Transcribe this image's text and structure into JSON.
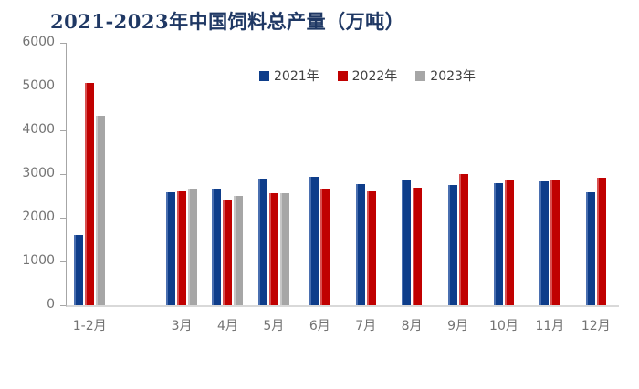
{
  "chart_data": {
    "type": "bar",
    "title": "2021-2023年中国饲料总产量（万吨）",
    "categories": [
      "1-2月",
      "",
      "3月",
      "4月",
      "5月",
      "6月",
      "7月",
      "8月",
      "9月",
      "10月",
      "11月",
      "12月"
    ],
    "series": [
      {
        "name": "2021年",
        "color": "#0E3D8A",
        "highlight": "#4A6FB0",
        "values": [
          1600,
          null,
          2580,
          2650,
          2870,
          2940,
          2770,
          2850,
          2740,
          2790,
          2830,
          2580
        ]
      },
      {
        "name": "2022年",
        "color": "#C00000",
        "highlight": "#D85050",
        "values": [
          5080,
          null,
          2600,
          2400,
          2560,
          2670,
          2600,
          2680,
          3000,
          2850,
          2860,
          2910
        ]
      },
      {
        "name": "2023年",
        "color": "#A6A6A6",
        "highlight": "#C6C6C6",
        "values": [
          4340,
          null,
          2670,
          2490,
          2570,
          null,
          null,
          null,
          null,
          null,
          null,
          null
        ]
      }
    ],
    "ylim": [
      0,
      6000
    ],
    "ytick_step": 1000,
    "xlabel": "",
    "ylabel": "",
    "grid": false,
    "legend_position": "top"
  },
  "colors": {
    "title": "#1F3864",
    "axis_line": "#A6A6A6",
    "baseline": "#D9D9D9",
    "axis_label": "#737373",
    "legend_text": "#404040",
    "background": "#FFFFFF"
  }
}
